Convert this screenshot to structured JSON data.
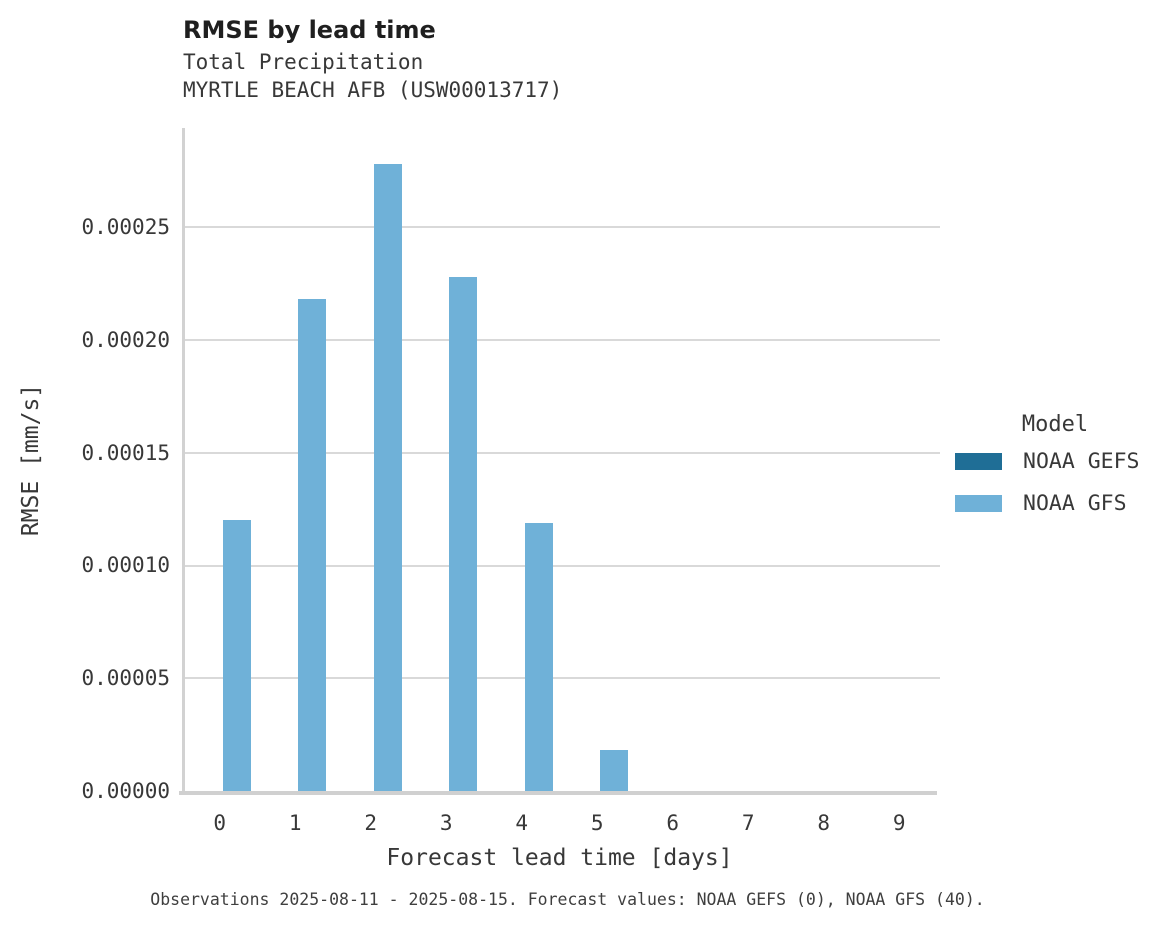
{
  "header": {
    "title": "RMSE by lead time",
    "subtitle_line1": "Total Precipitation",
    "subtitle_line2": "MYRTLE BEACH AFB (USW00013717)"
  },
  "chart_data": {
    "type": "bar",
    "title": "RMSE by lead time",
    "subtitle": [
      "Total Precipitation",
      "MYRTLE BEACH AFB (USW00013717)"
    ],
    "xlabel": "Forecast lead time [days]",
    "ylabel": "RMSE [mm/s]",
    "categories": [
      "0",
      "1",
      "2",
      "3",
      "4",
      "5",
      "6",
      "7",
      "8",
      "9"
    ],
    "series": [
      {
        "name": "NOAA GEFS",
        "color": "#1f6e96",
        "values": [
          0,
          0,
          0,
          0,
          0,
          0,
          0,
          0,
          0,
          0
        ]
      },
      {
        "name": "NOAA GFS",
        "color": "#6fb1d8",
        "values": [
          0.00012,
          0.000218,
          0.000278,
          0.000228,
          0.000119,
          1.8e-05,
          0,
          0,
          0,
          0
        ]
      }
    ],
    "ylim": [
      0,
      0.000294
    ],
    "yticks": [
      0,
      5e-05,
      0.0001,
      0.00015,
      0.0002,
      0.00025
    ],
    "ytick_labels": [
      "0.00000",
      "0.00005",
      "0.00010",
      "0.00015",
      "0.00020",
      "0.00025"
    ],
    "grid": true,
    "legend_title": "Model",
    "legend_position": "right"
  },
  "legend": {
    "title": "Model",
    "entries": [
      {
        "label": "NOAA GEFS",
        "color": "#1f6e96"
      },
      {
        "label": "NOAA GFS",
        "color": "#6fb1d8"
      }
    ]
  },
  "axes": {
    "xlabel": "Forecast lead time [days]",
    "ylabel": "RMSE [mm/s]"
  },
  "footer": {
    "caption": "Observations 2025-08-11 - 2025-08-15. Forecast values: NOAA GEFS (0), NOAA GFS (40)."
  },
  "colors": {
    "gridline": "#d9d9d9",
    "spine": "#d0d0d0",
    "text": "#383838",
    "title_text": "#1f1f1f"
  }
}
